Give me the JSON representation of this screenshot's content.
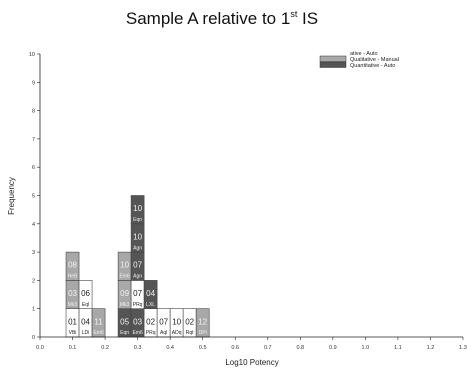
{
  "chart_data": {
    "type": "histogram",
    "title": {
      "text": "Sample A relative to 1",
      "superscript": "st",
      "suffix": " IS"
    },
    "xlabel": "Log10 Potency",
    "ylabel": "Frequency",
    "xlim": [
      0.0,
      1.3
    ],
    "ylim": [
      0,
      10
    ],
    "x_ticks": [
      "0.0",
      "0.1",
      "0.2",
      "0.3",
      "0.4",
      "0.5",
      "0.6",
      "0.7",
      "0.8",
      "0.9",
      "1.0",
      "1.1",
      "1.2",
      "1.3"
    ],
    "y_ticks": [
      "0",
      "1",
      "2",
      "3",
      "4",
      "5",
      "6",
      "7",
      "8",
      "9",
      "10"
    ],
    "grid": false,
    "legend": {
      "placement": "top-right",
      "entries": [
        {
          "label": "ative  -  Auto",
          "color": "#ffffff"
        },
        {
          "label": "Qualitative  -  Manual",
          "color": "#a8a8a8"
        },
        {
          "label": "Quantitative  -  Auto",
          "color": "#555555"
        }
      ]
    },
    "colors": {
      "white": "#ffffff",
      "light": "#a8a8a8",
      "dark": "#555555"
    },
    "bin_width": 0.04,
    "bins": [
      {
        "x": 0.08,
        "cells": [
          {
            "id": "01",
            "code": "VBi",
            "fill": "white"
          },
          {
            "id": "03",
            "code": "Mk3",
            "fill": "light"
          },
          {
            "id": "08",
            "code": "HeB",
            "fill": "light"
          }
        ]
      },
      {
        "x": 0.12,
        "cells": [
          {
            "id": "04",
            "code": "LDi",
            "fill": "white"
          },
          {
            "id": "06",
            "code": "Eql",
            "fill": "white"
          }
        ]
      },
      {
        "x": 0.16,
        "cells": [
          {
            "id": "11",
            "code": "Em6",
            "fill": "light"
          }
        ]
      },
      {
        "x": 0.24,
        "cells": [
          {
            "id": "05",
            "code": "Eqn",
            "fill": "dark"
          },
          {
            "id": "09",
            "code": "Mk3",
            "fill": "light"
          },
          {
            "id": "10",
            "code": "Em6",
            "fill": "light"
          }
        ]
      },
      {
        "x": 0.28,
        "cells": [
          {
            "id": "03",
            "code": "Em6",
            "fill": "dark"
          },
          {
            "id": "07",
            "code": "PRq",
            "fill": "white"
          },
          {
            "id": "07",
            "code": "Agn",
            "fill": "dark"
          },
          {
            "id": "10",
            "code": "Agn",
            "fill": "dark"
          },
          {
            "id": "10",
            "code": "Eqn",
            "fill": "dark"
          }
        ]
      },
      {
        "x": 0.32,
        "cells": [
          {
            "id": "02",
            "code": "PRq",
            "fill": "white"
          },
          {
            "id": "04",
            "code": "LXL",
            "fill": "dark"
          }
        ]
      },
      {
        "x": 0.36,
        "cells": [
          {
            "id": "07",
            "code": "Aql",
            "fill": "white"
          }
        ]
      },
      {
        "x": 0.4,
        "cells": [
          {
            "id": "10",
            "code": "ADq",
            "fill": "white"
          }
        ]
      },
      {
        "x": 0.44,
        "cells": [
          {
            "id": "02",
            "code": "Rqt",
            "fill": "white"
          }
        ]
      },
      {
        "x": 0.48,
        "cells": [
          {
            "id": "12",
            "code": "DPi",
            "fill": "light"
          }
        ]
      }
    ]
  }
}
